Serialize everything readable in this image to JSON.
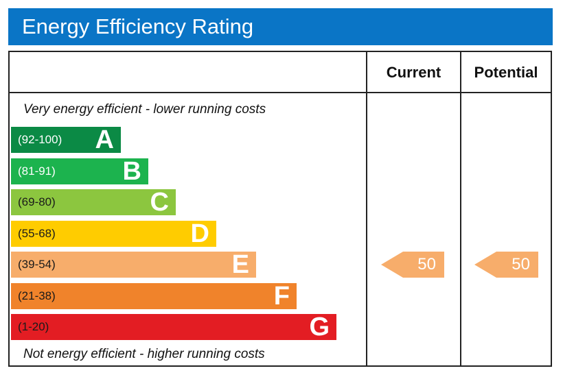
{
  "header": {
    "title": "Energy Efficiency Rating",
    "color": "#0a75c6"
  },
  "columns": {
    "current": "Current",
    "potential": "Potential"
  },
  "labels": {
    "top": "Very energy efficient - lower running costs",
    "bottom": "Not energy efficient - higher running costs"
  },
  "chart_data": {
    "type": "bar",
    "title": "Energy Efficiency Rating",
    "categories": [
      "A",
      "B",
      "C",
      "D",
      "E",
      "F",
      "G"
    ],
    "bands": [
      {
        "letter": "A",
        "range": "(92-100)",
        "color": "#0b8a45"
      },
      {
        "letter": "B",
        "range": "(81-91)",
        "color": "#1cb34e"
      },
      {
        "letter": "C",
        "range": "(69-80)",
        "color": "#8cc63f"
      },
      {
        "letter": "D",
        "range": "(55-68)",
        "color": "#ffcc00"
      },
      {
        "letter": "E",
        "range": "(39-54)",
        "color": "#f7ad6b"
      },
      {
        "letter": "F",
        "range": "(21-38)",
        "color": "#f0832b"
      },
      {
        "letter": "G",
        "range": "(1-20)",
        "color": "#e31d23"
      }
    ],
    "current": {
      "value": "50",
      "band": "E",
      "color": "#f7ad6b"
    },
    "potential": {
      "value": "50",
      "band": "E",
      "color": "#f7ad6b"
    }
  }
}
